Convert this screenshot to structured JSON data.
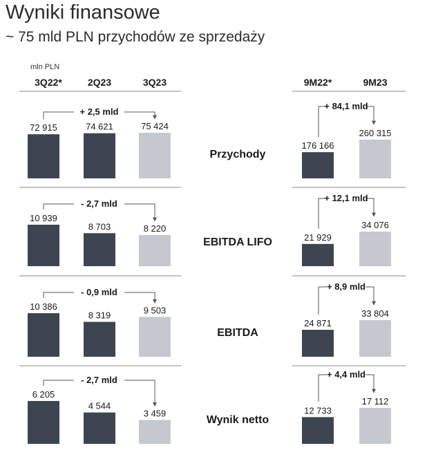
{
  "header": {
    "title": "Wyniki finansowe",
    "subtitle": "~ 75 mld PLN przychodów ze sprzedaży",
    "unit": "mln PLN"
  },
  "colors": {
    "dark": "#3d4551",
    "light": "#c5c8cf",
    "line": "#555555",
    "divider": "#8a8a8a"
  },
  "chart_data": {
    "type": "bar",
    "unit": "mln PLN",
    "quarter_categories": [
      "3Q22*",
      "2Q23",
      "3Q23"
    ],
    "ytd_categories": [
      "9M22*",
      "9M23"
    ],
    "panels": [
      {
        "metric": "Przychody",
        "quarterly": {
          "values": [
            72915,
            74621,
            75424
          ],
          "labels": [
            "72 915",
            "74 621",
            "75 424"
          ],
          "change": "+ 2,5 mld"
        },
        "ytd": {
          "values": [
            176166,
            260315
          ],
          "labels": [
            "176 166",
            "260 315"
          ],
          "change": "+ 84,1 mld"
        }
      },
      {
        "metric": "EBITDA LIFO",
        "quarterly": {
          "values": [
            10939,
            8703,
            8220
          ],
          "labels": [
            "10 939",
            "8 703",
            "8 220"
          ],
          "change": "- 2,7 mld"
        },
        "ytd": {
          "values": [
            21929,
            34076
          ],
          "labels": [
            "21 929",
            "34 076"
          ],
          "change": "+ 12,1 mld"
        }
      },
      {
        "metric": "EBITDA",
        "quarterly": {
          "values": [
            10386,
            8319,
            9503
          ],
          "labels": [
            "10 386",
            "8 319",
            "9 503"
          ],
          "change": "- 0,9 mld"
        },
        "ytd": {
          "values": [
            24871,
            33804
          ],
          "labels": [
            "24 871",
            "33 804"
          ],
          "change": "+ 8,9 mld"
        }
      },
      {
        "metric": "Wynik netto",
        "quarterly": {
          "values": [
            6205,
            4544,
            3459
          ],
          "labels": [
            "6 205",
            "4 544",
            "3 459"
          ],
          "change": "- 2,7 mld"
        },
        "ytd": {
          "values": [
            12733,
            17112
          ],
          "labels": [
            "12 733",
            "17 112"
          ],
          "change": "+ 4,4 mld"
        }
      }
    ]
  }
}
